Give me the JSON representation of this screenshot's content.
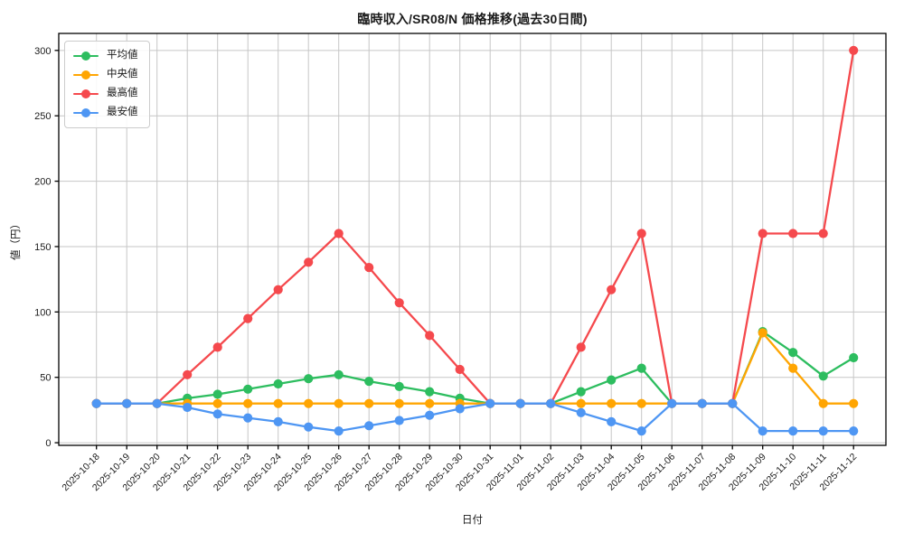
{
  "page": {
    "background": "#ffffff"
  },
  "chart_data": {
    "type": "line",
    "title": "臨時収入/SR08/N 価格推移(過去30日間)",
    "xlabel": "日付",
    "ylabel": "値（円）",
    "categories": [
      "2025-10-18",
      "2025-10-19",
      "2025-10-20",
      "2025-10-21",
      "2025-10-22",
      "2025-10-23",
      "2025-10-24",
      "2025-10-25",
      "2025-10-26",
      "2025-10-27",
      "2025-10-28",
      "2025-10-29",
      "2025-10-30",
      "2025-10-31",
      "2025-11-01",
      "2025-11-02",
      "2025-11-03",
      "2025-11-04",
      "2025-11-05",
      "2025-11-06",
      "2025-11-07",
      "2025-11-08",
      "2025-11-09",
      "2025-11-10",
      "2025-11-11",
      "2025-11-12"
    ],
    "yticks": [
      0,
      50,
      100,
      150,
      200,
      250,
      300
    ],
    "ylim": [
      -2,
      313
    ],
    "grid": true,
    "grid_color": "#c6c6c6",
    "axis_color": "#000000",
    "legend_position": "upper-left",
    "series": [
      {
        "key": "average",
        "name": "平均値",
        "color": "#2dbd5f",
        "values": [
          30,
          30,
          30,
          34,
          37,
          41,
          45,
          49,
          52,
          47,
          43,
          39,
          34,
          30,
          30,
          30,
          39,
          48,
          57,
          30,
          30,
          30,
          85,
          69,
          51,
          65
        ]
      },
      {
        "key": "median",
        "name": "中央値",
        "color": "#ffa502",
        "values": [
          30,
          30,
          30,
          30,
          30,
          30,
          30,
          30,
          30,
          30,
          30,
          30,
          30,
          30,
          30,
          30,
          30,
          30,
          30,
          30,
          30,
          30,
          84,
          57,
          30,
          30
        ]
      },
      {
        "key": "max",
        "name": "最高値",
        "color": "#f5494d",
        "values": [
          30,
          30,
          30,
          52,
          73,
          95,
          117,
          138,
          160,
          134,
          107,
          82,
          56,
          30,
          30,
          30,
          73,
          117,
          160,
          30,
          30,
          30,
          160,
          160,
          160,
          300
        ]
      },
      {
        "key": "min",
        "name": "最安値",
        "color": "#4e96f3",
        "values": [
          30,
          30,
          30,
          27,
          22,
          19,
          16,
          12,
          9,
          13,
          17,
          21,
          26,
          30,
          30,
          30,
          23,
          16,
          9,
          30,
          30,
          30,
          9,
          9,
          9,
          9
        ]
      }
    ]
  }
}
